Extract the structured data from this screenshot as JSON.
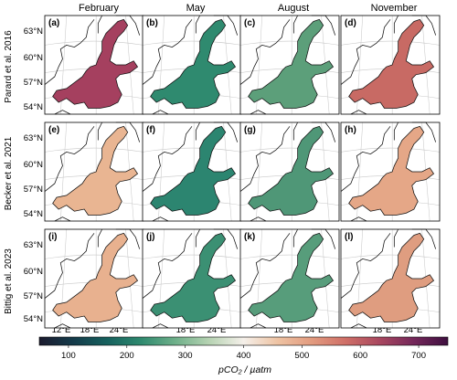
{
  "columns": [
    "February",
    "May",
    "August",
    "November"
  ],
  "rows": [
    "Parard et al. 2016",
    "Becker et al. 2021",
    "Bittig et al. 2023"
  ],
  "panel_labels": [
    "(a)",
    "(b)",
    "(c)",
    "(d)",
    "(e)",
    "(f)",
    "(g)",
    "(h)",
    "(i)",
    "(j)",
    "(k)",
    "(l)"
  ],
  "lat_ticks": [
    "63°N",
    "60°N",
    "57°N",
    "54°N"
  ],
  "lon_ticks": [
    "12°E",
    "18°E",
    "24°E"
  ],
  "colorbar": {
    "ticks": [
      "100",
      "200",
      "300",
      "400",
      "500",
      "600",
      "700"
    ],
    "label": "pCO₂ / µatm",
    "stops": [
      "#1b1a2e",
      "#143b4a",
      "#16615e",
      "#2f8a6f",
      "#6fb08a",
      "#b7d3b3",
      "#f5f0ea",
      "#eec3a3",
      "#e29b7f",
      "#cf6f67",
      "#a8475f",
      "#74275a",
      "#3e0f3f"
    ]
  },
  "panel_colors": [
    [
      "#a5405f",
      "#2f8a6f",
      "#5c9f7a",
      "#c86a64"
    ],
    [
      "#e9b592",
      "#2c8570",
      "#4f9777",
      "#e5a787"
    ],
    [
      "#e8b18f",
      "#3b9073",
      "#579d7b",
      "#df9d80"
    ]
  ]
}
